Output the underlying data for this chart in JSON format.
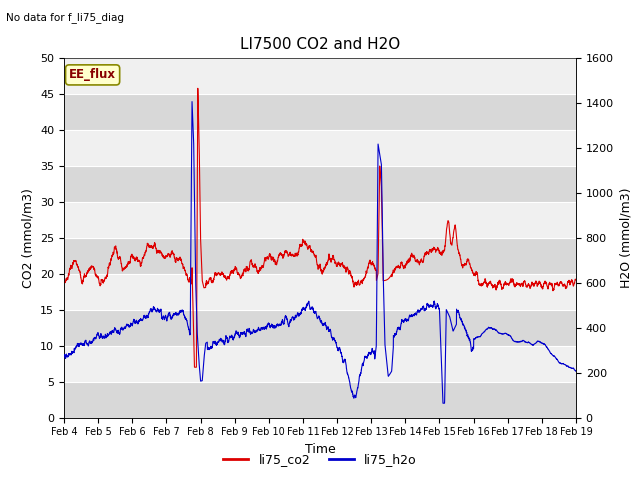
{
  "title": "LI7500 CO2 and H2O",
  "top_left_text": "No data for f_li75_diag",
  "xlabel": "Time",
  "ylabel_left": "CO2 (mmol/m3)",
  "ylabel_right": "H2O (mmol/m3)",
  "ylim_left": [
    0,
    50
  ],
  "ylim_right": [
    0,
    1600
  ],
  "x_tick_labels": [
    "Feb 4",
    "Feb 5",
    "Feb 6",
    "Feb 7",
    "Feb 8",
    "Feb 9",
    "Feb 10",
    "Feb 11",
    "Feb 12",
    "Feb 13",
    "Feb 14",
    "Feb 15",
    "Feb 16",
    "Feb 17",
    "Feb 18",
    "Feb 19"
  ],
  "co2_color": "#dd0000",
  "h2o_color": "#0000cc",
  "band_color_light": "#f0f0f0",
  "band_color_dark": "#d8d8d8",
  "ee_flux_box_color": "#ffffcc",
  "ee_flux_text_color": "#880000",
  "legend_labels": [
    "li75_co2",
    "li75_h2o"
  ],
  "line_width": 0.8,
  "figsize": [
    6.4,
    4.8
  ],
  "dpi": 100
}
